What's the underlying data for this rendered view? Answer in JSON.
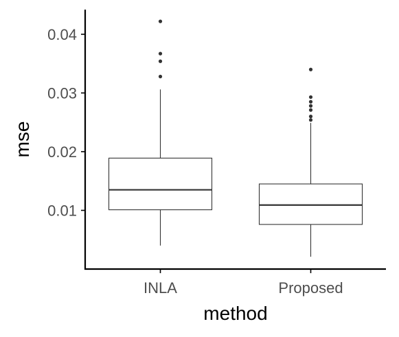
{
  "chart_data": {
    "type": "boxplot",
    "xlabel": "method",
    "ylabel": "mse",
    "categories": [
      "INLA",
      "Proposed"
    ],
    "y_ticks": [
      0.01,
      0.02,
      0.03,
      0.04
    ],
    "y_tick_labels": [
      "0.01",
      "0.02",
      "0.03",
      "0.04"
    ],
    "ylim": [
      0.0,
      0.0442
    ],
    "grid": false,
    "legend": "none",
    "boxes": [
      {
        "category": "INLA",
        "whisker_low": 0.004,
        "q1": 0.0101,
        "median": 0.0135,
        "q3": 0.0189,
        "whisker_high": 0.0306,
        "outliers": [
          0.0328,
          0.0354,
          0.0367,
          0.0422
        ]
      },
      {
        "category": "Proposed",
        "whisker_low": 0.0021,
        "q1": 0.0076,
        "median": 0.0109,
        "q3": 0.0145,
        "whisker_high": 0.0249,
        "outliers": [
          0.0254,
          0.026,
          0.0271,
          0.0278,
          0.0285,
          0.0293,
          0.034
        ]
      }
    ],
    "colors": {
      "line": "#333333",
      "fill": "#ffffff",
      "axis": "#000000",
      "tick_text": "#4d4d4d"
    }
  }
}
